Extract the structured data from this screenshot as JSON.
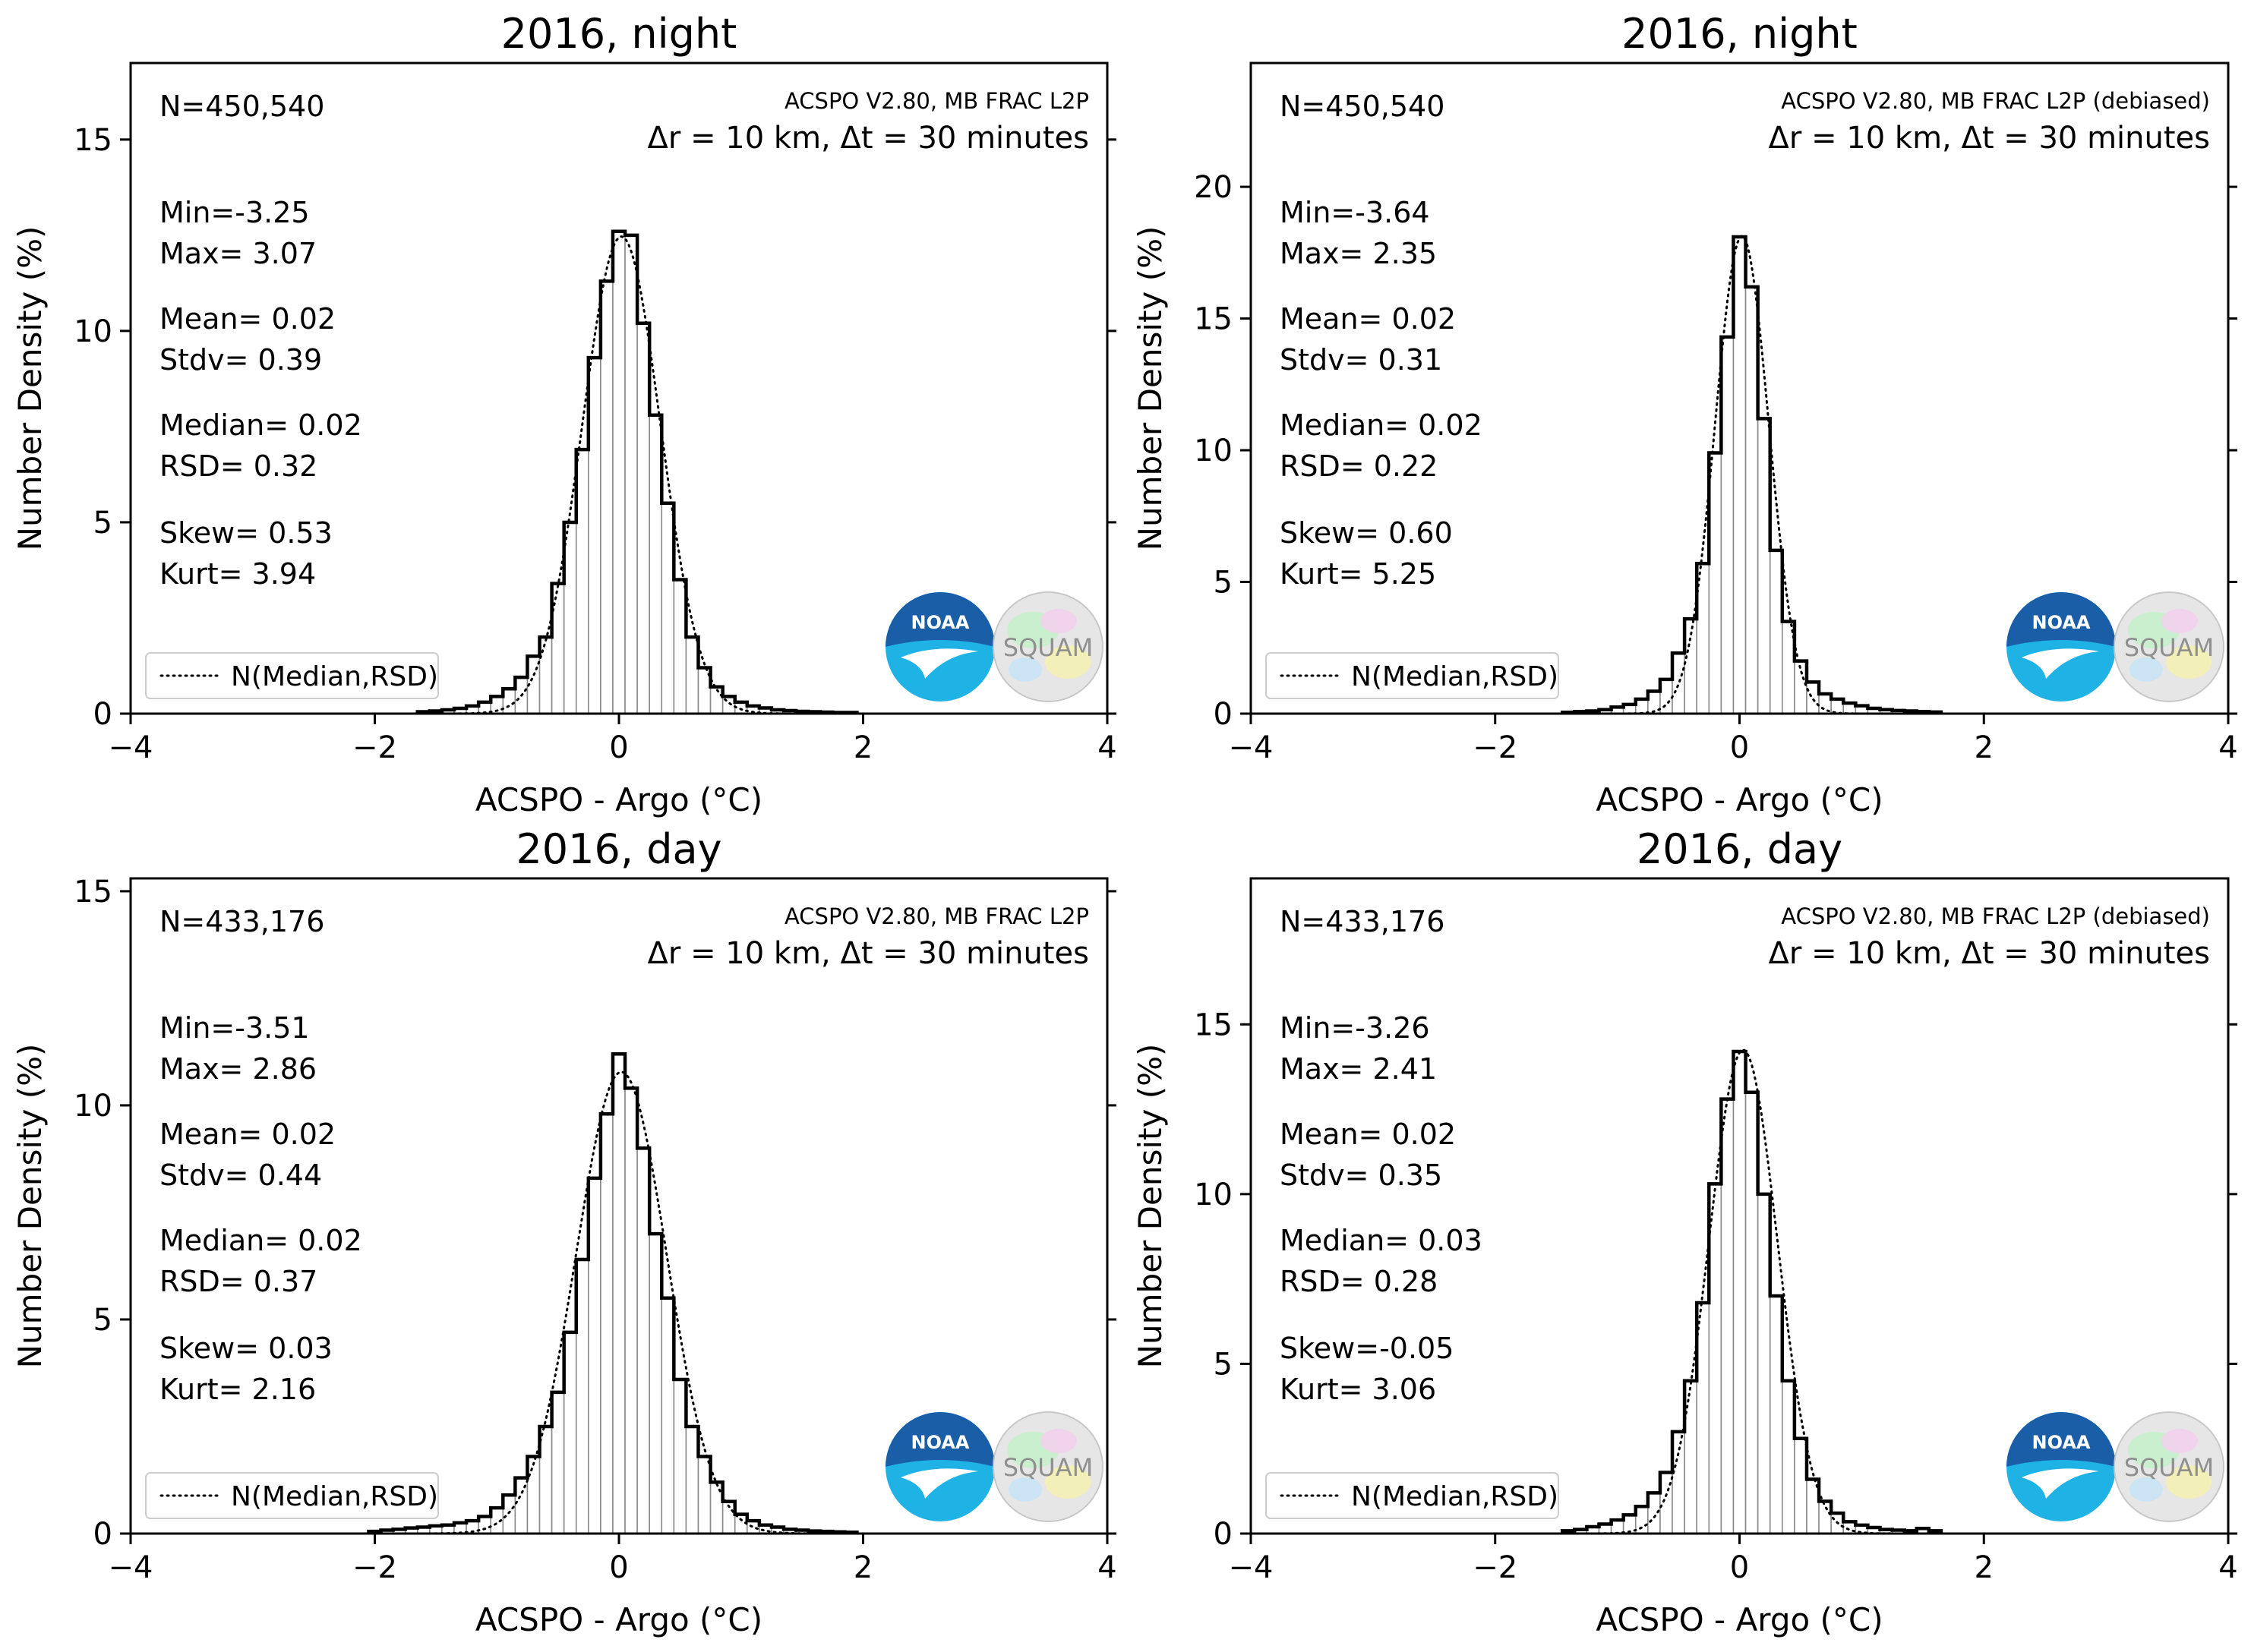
{
  "figure": {
    "background": "#ffffff"
  },
  "chart_data": [
    {
      "type": "bar",
      "title": "2016, night",
      "xlabel": "ACSPO - Argo (°C)",
      "ylabel": "Number Density (%)",
      "xlim": [
        -4,
        4
      ],
      "ylim": [
        0,
        17
      ],
      "xticks": [
        "−4",
        "−2",
        "0",
        "2",
        "4"
      ],
      "yticks": [
        {
          "v": 0,
          "label": "0"
        },
        {
          "v": 5,
          "label": "5"
        },
        {
          "v": 10,
          "label": "10"
        },
        {
          "v": 15,
          "label": "15"
        }
      ],
      "n_label": "N=450,540",
      "source_label": "ACSPO V2.80, MB FRAC L2P",
      "criteria_label": "Δr = 10 km, Δt = 30 minutes",
      "stats": [
        "Min=-3.25",
        "Max= 3.07",
        "Mean= 0.02",
        "Stdv= 0.39",
        "Median= 0.02",
        "RSD= 0.32",
        "Skew= 0.53",
        "Kurt= 3.94"
      ],
      "legend": "N(Median,RSD)",
      "legend_location": "lower-left",
      "logos": {
        "noaa": "NOAA",
        "squam": "SQUAM"
      },
      "bin_width": 0.1,
      "median": 0.02,
      "rsd": 0.32,
      "hist": [
        [
          -1.6,
          0.05
        ],
        [
          -1.5,
          0.07
        ],
        [
          -1.4,
          0.1
        ],
        [
          -1.3,
          0.14
        ],
        [
          -1.2,
          0.2
        ],
        [
          -1.1,
          0.3
        ],
        [
          -1.0,
          0.45
        ],
        [
          -0.9,
          0.65
        ],
        [
          -0.8,
          0.95
        ],
        [
          -0.7,
          1.5
        ],
        [
          -0.6,
          2.0
        ],
        [
          -0.5,
          3.4
        ],
        [
          -0.4,
          5.0
        ],
        [
          -0.3,
          6.9
        ],
        [
          -0.2,
          9.3
        ],
        [
          -0.1,
          11.3
        ],
        [
          0.0,
          12.6
        ],
        [
          0.1,
          12.5
        ],
        [
          0.2,
          10.2
        ],
        [
          0.3,
          7.8
        ],
        [
          0.4,
          5.5
        ],
        [
          0.5,
          3.5
        ],
        [
          0.6,
          2.0
        ],
        [
          0.7,
          1.2
        ],
        [
          0.8,
          0.7
        ],
        [
          0.9,
          0.45
        ],
        [
          1.0,
          0.3
        ],
        [
          1.1,
          0.2
        ],
        [
          1.2,
          0.15
        ],
        [
          1.3,
          0.1
        ],
        [
          1.4,
          0.08
        ],
        [
          1.5,
          0.06
        ],
        [
          1.6,
          0.05
        ],
        [
          1.7,
          0.04
        ],
        [
          1.8,
          0.03
        ],
        [
          1.9,
          0.03
        ]
      ]
    },
    {
      "type": "bar",
      "title": "2016, night",
      "xlabel": "ACSPO - Argo (°C)",
      "ylabel": "Number Density (%)",
      "xlim": [
        -4,
        4
      ],
      "ylim": [
        0,
        24.7
      ],
      "xticks": [
        "−4",
        "−2",
        "0",
        "2",
        "4"
      ],
      "yticks": [
        {
          "v": 0,
          "label": "0"
        },
        {
          "v": 5,
          "label": "5"
        },
        {
          "v": 10,
          "label": "10"
        },
        {
          "v": 15,
          "label": "15"
        },
        {
          "v": 20,
          "label": "20"
        }
      ],
      "n_label": "N=450,540",
      "source_label": "ACSPO V2.80, MB FRAC L2P (debiased)",
      "criteria_label": "Δr = 10 km, Δt = 30 minutes",
      "stats": [
        "Min=-3.64",
        "Max= 2.35",
        "Mean= 0.02",
        "Stdv= 0.31",
        "Median= 0.02",
        "RSD= 0.22",
        "Skew= 0.60",
        "Kurt= 5.25"
      ],
      "legend": "N(Median,RSD)",
      "legend_location": "lower-left",
      "logos": {
        "noaa": "NOAA",
        "squam": "SQUAM"
      },
      "bin_width": 0.1,
      "median": 0.02,
      "rsd": 0.22,
      "hist": [
        [
          -1.4,
          0.05
        ],
        [
          -1.3,
          0.08
        ],
        [
          -1.2,
          0.1
        ],
        [
          -1.1,
          0.15
        ],
        [
          -1.0,
          0.25
        ],
        [
          -0.9,
          0.35
        ],
        [
          -0.8,
          0.55
        ],
        [
          -0.7,
          0.85
        ],
        [
          -0.6,
          1.3
        ],
        [
          -0.5,
          2.3
        ],
        [
          -0.4,
          3.6
        ],
        [
          -0.3,
          5.7
        ],
        [
          -0.2,
          9.9
        ],
        [
          -0.1,
          14.3
        ],
        [
          0.0,
          18.1
        ],
        [
          0.1,
          16.2
        ],
        [
          0.2,
          11.2
        ],
        [
          0.3,
          6.2
        ],
        [
          0.4,
          3.5
        ],
        [
          0.5,
          2.0
        ],
        [
          0.6,
          1.2
        ],
        [
          0.7,
          0.75
        ],
        [
          0.8,
          0.55
        ],
        [
          0.9,
          0.4
        ],
        [
          1.0,
          0.3
        ],
        [
          1.1,
          0.2
        ],
        [
          1.2,
          0.15
        ],
        [
          1.3,
          0.12
        ],
        [
          1.4,
          0.1
        ],
        [
          1.5,
          0.08
        ],
        [
          1.6,
          0.06
        ]
      ]
    },
    {
      "type": "bar",
      "title": "2016, day",
      "xlabel": "ACSPO - Argo (°C)",
      "ylabel": "Number Density (%)",
      "xlim": [
        -4,
        4
      ],
      "ylim": [
        0,
        15.3
      ],
      "xticks": [
        "−4",
        "−2",
        "0",
        "2",
        "4"
      ],
      "yticks": [
        {
          "v": 0,
          "label": "0"
        },
        {
          "v": 5,
          "label": "5"
        },
        {
          "v": 10,
          "label": "10"
        },
        {
          "v": 15,
          "label": "15"
        }
      ],
      "n_label": "N=433,176",
      "source_label": "ACSPO V2.80, MB FRAC L2P",
      "criteria_label": "Δr = 10 km, Δt = 30 minutes",
      "stats": [
        "Min=-3.51",
        "Max= 2.86",
        "Mean= 0.02",
        "Stdv= 0.44",
        "Median= 0.02",
        "RSD= 0.37",
        "Skew= 0.03",
        "Kurt= 2.16"
      ],
      "legend": "N(Median,RSD)",
      "legend_location": "lower-left",
      "logos": {
        "noaa": "NOAA",
        "squam": "SQUAM"
      },
      "bin_width": 0.1,
      "median": 0.02,
      "rsd": 0.37,
      "hist": [
        [
          -2.0,
          0.05
        ],
        [
          -1.9,
          0.08
        ],
        [
          -1.8,
          0.1
        ],
        [
          -1.7,
          0.13
        ],
        [
          -1.6,
          0.15
        ],
        [
          -1.5,
          0.18
        ],
        [
          -1.4,
          0.2
        ],
        [
          -1.3,
          0.25
        ],
        [
          -1.2,
          0.3
        ],
        [
          -1.1,
          0.4
        ],
        [
          -1.0,
          0.6
        ],
        [
          -0.9,
          0.9
        ],
        [
          -0.8,
          1.3
        ],
        [
          -0.7,
          1.8
        ],
        [
          -0.6,
          2.5
        ],
        [
          -0.5,
          3.3
        ],
        [
          -0.4,
          4.7
        ],
        [
          -0.3,
          6.4
        ],
        [
          -0.2,
          8.3
        ],
        [
          -0.1,
          9.8
        ],
        [
          0.0,
          11.2
        ],
        [
          0.1,
          10.4
        ],
        [
          0.2,
          9.0
        ],
        [
          0.3,
          7.0
        ],
        [
          0.4,
          5.5
        ],
        [
          0.5,
          3.6
        ],
        [
          0.6,
          2.5
        ],
        [
          0.7,
          1.8
        ],
        [
          0.8,
          1.2
        ],
        [
          0.9,
          0.75
        ],
        [
          1.0,
          0.45
        ],
        [
          1.1,
          0.3
        ],
        [
          1.2,
          0.2
        ],
        [
          1.3,
          0.15
        ],
        [
          1.4,
          0.1
        ],
        [
          1.5,
          0.08
        ],
        [
          1.6,
          0.06
        ],
        [
          1.7,
          0.05
        ],
        [
          1.8,
          0.04
        ],
        [
          1.9,
          0.03
        ]
      ]
    },
    {
      "type": "bar",
      "title": "2016, day",
      "xlabel": "ACSPO - Argo (°C)",
      "ylabel": "Number Density (%)",
      "xlim": [
        -4,
        4
      ],
      "ylim": [
        0,
        19.3
      ],
      "xticks": [
        "−4",
        "−2",
        "0",
        "2",
        "4"
      ],
      "yticks": [
        {
          "v": 0,
          "label": "0"
        },
        {
          "v": 5,
          "label": "5"
        },
        {
          "v": 10,
          "label": "10"
        },
        {
          "v": 15,
          "label": "15"
        }
      ],
      "n_label": "N=433,176",
      "source_label": "ACSPO V2.80, MB FRAC L2P (debiased)",
      "criteria_label": "Δr = 10 km, Δt = 30 minutes",
      "stats": [
        "Min=-3.26",
        "Max= 2.41",
        "Mean= 0.02",
        "Stdv= 0.35",
        "Median= 0.03",
        "RSD= 0.28",
        "Skew=-0.05",
        "Kurt= 3.06"
      ],
      "legend": "N(Median,RSD)",
      "legend_location": "lower-left",
      "logos": {
        "noaa": "NOAA",
        "squam": "SQUAM"
      },
      "bin_width": 0.1,
      "median": 0.03,
      "rsd": 0.28,
      "hist": [
        [
          -1.4,
          0.08
        ],
        [
          -1.3,
          0.12
        ],
        [
          -1.2,
          0.2
        ],
        [
          -1.1,
          0.28
        ],
        [
          -1.0,
          0.4
        ],
        [
          -0.9,
          0.55
        ],
        [
          -0.8,
          0.8
        ],
        [
          -0.7,
          1.2
        ],
        [
          -0.6,
          1.8
        ],
        [
          -0.5,
          3.0
        ],
        [
          -0.4,
          4.5
        ],
        [
          -0.3,
          6.8
        ],
        [
          -0.2,
          10.3
        ],
        [
          -0.1,
          12.8
        ],
        [
          0.0,
          14.2
        ],
        [
          0.1,
          13.0
        ],
        [
          0.2,
          10.0
        ],
        [
          0.3,
          7.0
        ],
        [
          0.4,
          4.5
        ],
        [
          0.5,
          2.8
        ],
        [
          0.6,
          1.6
        ],
        [
          0.7,
          0.95
        ],
        [
          0.8,
          0.6
        ],
        [
          0.9,
          0.35
        ],
        [
          1.0,
          0.25
        ],
        [
          1.1,
          0.18
        ],
        [
          1.2,
          0.12
        ],
        [
          1.3,
          0.1
        ],
        [
          1.4,
          0.08
        ],
        [
          1.5,
          0.15
        ],
        [
          1.6,
          0.08
        ]
      ]
    }
  ]
}
